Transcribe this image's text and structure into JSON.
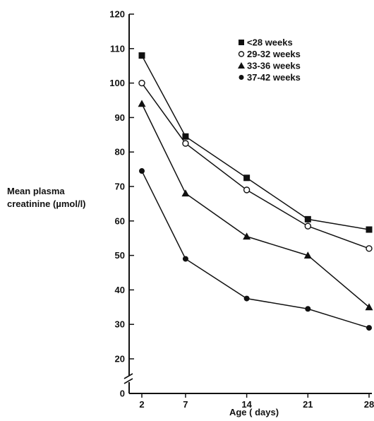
{
  "chart_data": {
    "type": "line",
    "title": "",
    "xlabel": "Age  ( days)",
    "ylabel": "Mean plasma\ncreatinine (µmol/l)",
    "x": [
      2,
      7,
      14,
      21,
      28
    ],
    "x_ticks": [
      "2",
      "7",
      "14",
      "21",
      "28"
    ],
    "y_ticks": [
      "0",
      "20",
      "30",
      "40",
      "50",
      "60",
      "70",
      "80",
      "90",
      "100",
      "110",
      "120"
    ],
    "ylim": [
      0,
      120
    ],
    "axis_break": [
      0,
      20
    ],
    "grid": false,
    "legend_position": "top-right",
    "series": [
      {
        "name": "<28 weeks",
        "marker": "square-filled",
        "values": [
          108,
          84.5,
          72.5,
          60.5,
          57.5
        ]
      },
      {
        "name": "29-32 weeks",
        "marker": "circle-open",
        "values": [
          100,
          82.5,
          69,
          58.5,
          52
        ]
      },
      {
        "name": "33-36 weeks",
        "marker": "triangle-filled",
        "values": [
          94,
          68,
          55.5,
          50,
          35
        ]
      },
      {
        "name": "37-42 weeks",
        "marker": "circle-filled",
        "values": [
          74.5,
          49,
          37.5,
          34.5,
          29
        ]
      }
    ]
  }
}
